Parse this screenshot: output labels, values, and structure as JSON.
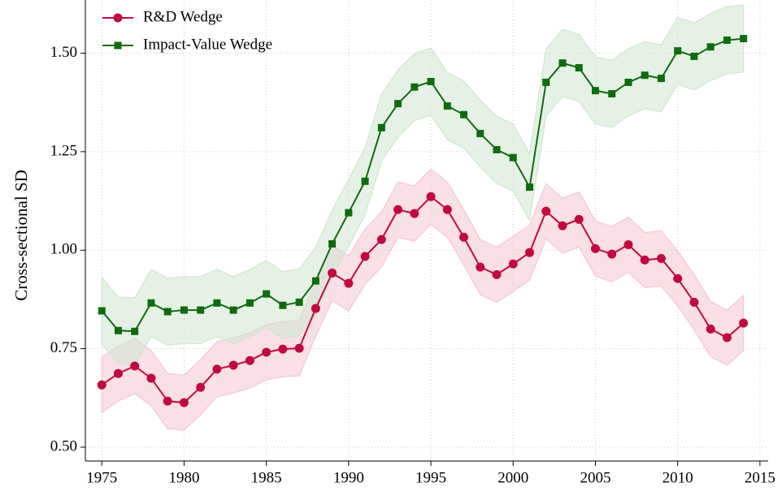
{
  "chart_data": {
    "type": "line",
    "y_label": "Cross-sectional SD",
    "x": [
      1975,
      1976,
      1977,
      1978,
      1979,
      1980,
      1981,
      1982,
      1983,
      1984,
      1985,
      1986,
      1987,
      1988,
      1989,
      1990,
      1991,
      1992,
      1993,
      1994,
      1995,
      1996,
      1997,
      1998,
      1999,
      2000,
      2001,
      2002,
      2003,
      2004,
      2005,
      2006,
      2007,
      2008,
      2009,
      2010,
      2011,
      2012,
      2013,
      2014
    ],
    "series": [
      {
        "name": "R&D Wedge",
        "color": "#c2093f",
        "band_color": "#f4c6d2",
        "marker": "circle",
        "values": [
          0.658,
          0.687,
          0.706,
          0.675,
          0.617,
          0.613,
          0.652,
          0.698,
          0.708,
          0.72,
          0.741,
          0.749,
          0.751,
          0.852,
          0.942,
          0.916,
          0.984,
          1.027,
          1.103,
          1.093,
          1.136,
          1.103,
          1.033,
          0.957,
          0.938,
          0.965,
          0.994,
          1.099,
          1.062,
          1.078,
          1.004,
          0.99,
          1.014,
          0.975,
          0.979,
          0.928,
          0.868,
          0.8,
          0.778,
          0.815
        ],
        "lower": [
          0.588,
          0.617,
          0.636,
          0.605,
          0.547,
          0.543,
          0.582,
          0.628,
          0.638,
          0.65,
          0.671,
          0.679,
          0.681,
          0.782,
          0.872,
          0.846,
          0.914,
          0.957,
          1.033,
          1.023,
          1.066,
          1.033,
          0.963,
          0.887,
          0.868,
          0.895,
          0.924,
          1.029,
          0.992,
          1.008,
          0.934,
          0.92,
          0.944,
          0.905,
          0.909,
          0.858,
          0.798,
          0.73,
          0.708,
          0.745
        ],
        "upper": [
          0.728,
          0.757,
          0.776,
          0.745,
          0.687,
          0.683,
          0.722,
          0.768,
          0.778,
          0.79,
          0.811,
          0.819,
          0.821,
          0.922,
          1.012,
          0.986,
          1.054,
          1.097,
          1.173,
          1.163,
          1.206,
          1.173,
          1.103,
          1.027,
          1.008,
          1.035,
          1.064,
          1.169,
          1.132,
          1.148,
          1.074,
          1.06,
          1.084,
          1.045,
          1.049,
          0.998,
          0.938,
          0.87,
          0.848,
          0.885
        ]
      },
      {
        "name": "Impact-Value Wedge",
        "color": "#0f6b0f",
        "band_color": "#cfe5cf",
        "marker": "square",
        "values": [
          0.846,
          0.796,
          0.794,
          0.866,
          0.844,
          0.848,
          0.848,
          0.866,
          0.848,
          0.866,
          0.889,
          0.86,
          0.868,
          0.922,
          1.016,
          1.095,
          1.175,
          1.311,
          1.372,
          1.414,
          1.428,
          1.366,
          1.344,
          1.296,
          1.255,
          1.235,
          1.16,
          1.426,
          1.475,
          1.463,
          1.405,
          1.397,
          1.426,
          1.444,
          1.436,
          1.506,
          1.492,
          1.516,
          1.533,
          1.537
        ],
        "lower": [
          0.761,
          0.711,
          0.709,
          0.781,
          0.759,
          0.763,
          0.763,
          0.781,
          0.763,
          0.781,
          0.804,
          0.775,
          0.783,
          0.837,
          0.931,
          1.01,
          1.09,
          1.226,
          1.287,
          1.329,
          1.343,
          1.281,
          1.259,
          1.211,
          1.17,
          1.15,
          1.075,
          1.341,
          1.39,
          1.378,
          1.32,
          1.312,
          1.341,
          1.359,
          1.351,
          1.421,
          1.407,
          1.431,
          1.448,
          1.452
        ],
        "upper": [
          0.931,
          0.881,
          0.879,
          0.951,
          0.929,
          0.933,
          0.933,
          0.951,
          0.933,
          0.951,
          0.974,
          0.945,
          0.953,
          1.007,
          1.101,
          1.18,
          1.26,
          1.396,
          1.457,
          1.499,
          1.513,
          1.451,
          1.429,
          1.381,
          1.34,
          1.32,
          1.245,
          1.511,
          1.56,
          1.548,
          1.49,
          1.482,
          1.511,
          1.529,
          1.521,
          1.591,
          1.577,
          1.601,
          1.618,
          1.622
        ]
      }
    ],
    "xlim": [
      1974,
      2015.5
    ],
    "ylim": [
      0.465,
      1.635
    ],
    "xticks": [
      1975,
      1980,
      1985,
      1990,
      1995,
      2000,
      2005,
      2010,
      2015
    ],
    "yticks": [
      {
        "value": 0.5,
        "label": "0.50"
      },
      {
        "value": 0.75,
        "label": "0.75"
      },
      {
        "value": 1.0,
        "label": "1.00"
      },
      {
        "value": 1.25,
        "label": "1.25"
      },
      {
        "value": 1.5,
        "label": "1.50"
      }
    ],
    "grid": true,
    "legend": "top-left"
  }
}
